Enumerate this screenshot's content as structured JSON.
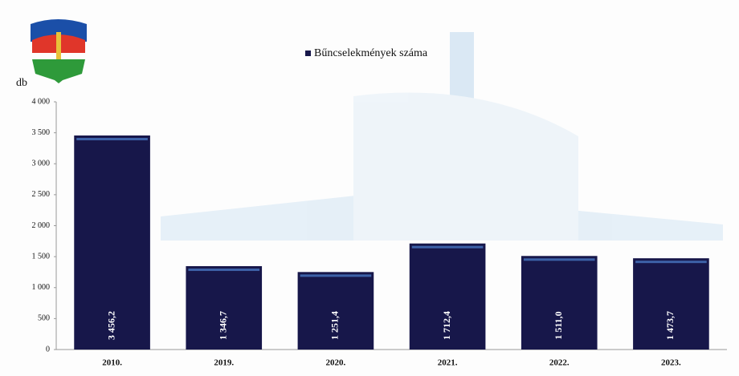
{
  "chart_data": {
    "type": "bar",
    "y_label": "db",
    "legend": "Bűncselekmények száma",
    "categories": [
      "2010.",
      "2019.",
      "2020.",
      "2021.",
      "2022.",
      "2023."
    ],
    "values": [
      3456.2,
      1346.7,
      1251.4,
      1712.4,
      1511.0,
      1473.7
    ],
    "value_labels": [
      "3 456,2",
      "1 346,7",
      "1 251,4",
      "1 712,4",
      "1 511,0",
      "1 473,7"
    ],
    "color": "#17174a",
    "ylim": [
      0,
      4000
    ],
    "yticks": [
      0,
      500,
      {
        "value": 1000,
        "label": "1 000"
      },
      {
        "value": 1500,
        "label": "1 500"
      },
      {
        "value": 2000,
        "label": "2 000"
      },
      {
        "value": 2500,
        "label": "2 500"
      },
      {
        "value": 3000,
        "label": "3 000"
      },
      {
        "value": 3500,
        "label": "3 500"
      },
      {
        "value": 4000,
        "label": "4 000"
      }
    ],
    "grid": false
  }
}
